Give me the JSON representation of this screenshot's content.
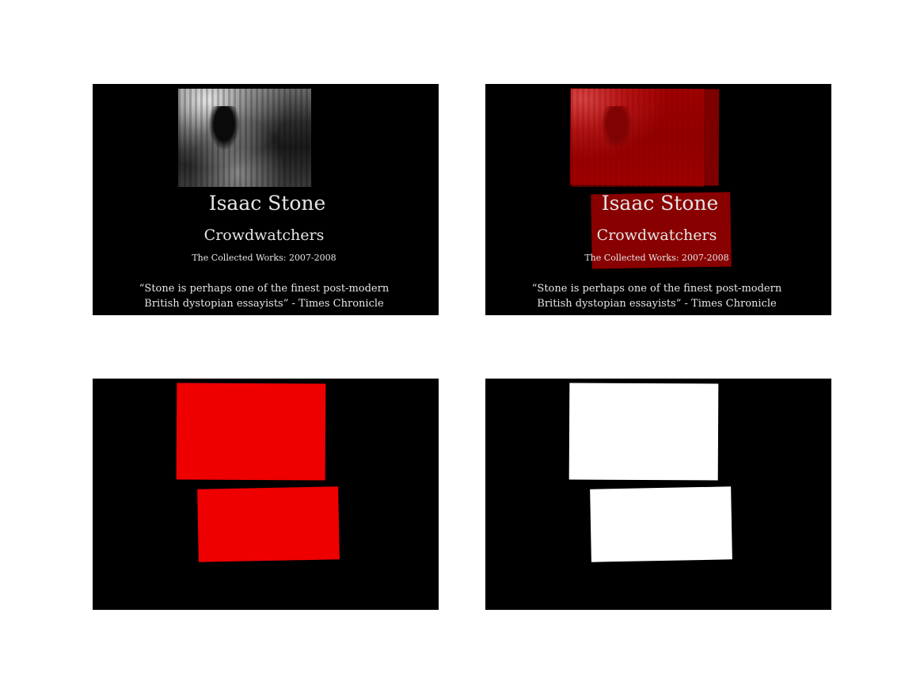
{
  "poster": {
    "author": "Isaac Stone",
    "title": "Crowdwatchers",
    "subtitle": "The Collected Works: 2007-2008",
    "quote_line1": "“Stone is perhaps one of the finest post-modern",
    "quote_line2": "British dystopian essayists”  -  Times Chronicle"
  },
  "colors": {
    "background": "#000000",
    "page": "#ffffff",
    "overlay_tint": "#c80000",
    "mask_red": "#ee0000",
    "mask_white": "#ffffff",
    "text": "#e6e6e6"
  },
  "panels": [
    "original",
    "overlay",
    "red-mask",
    "binary-mask"
  ]
}
